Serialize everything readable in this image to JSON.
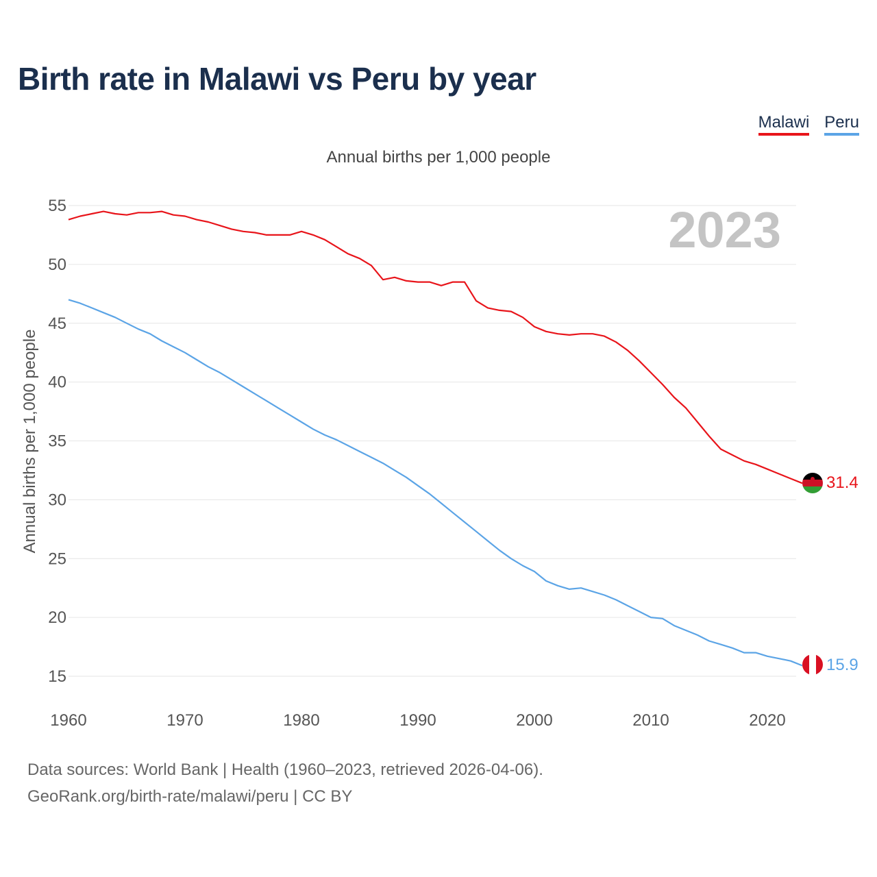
{
  "title": "Birth rate in Malawi vs Peru by year",
  "subtitle": "Annual births per 1,000 people",
  "legend": [
    {
      "label": "Malawi",
      "color": "#e8141a"
    },
    {
      "label": "Peru",
      "color": "#5ba4e6"
    }
  ],
  "year_overlay": "2023",
  "end_labels": {
    "malawi": "31.4",
    "peru": "15.9"
  },
  "footer": {
    "line1": "Data sources: World Bank | Health (1960–2023, retrieved 2026-04-06).",
    "line2": "GeoRank.org/birth-rate/malawi/peru | CC BY"
  },
  "colors": {
    "title": "#1b2f4d",
    "grid": "#e6e6e6",
    "axis_text": "#555555",
    "year_overlay": "#c4c4c4"
  },
  "chart_data": {
    "type": "line",
    "title": "Birth rate in Malawi vs Peru by year",
    "xlabel": "",
    "ylabel": "Annual births per 1,000 people",
    "xlim": [
      1960,
      2023
    ],
    "ylim": [
      15,
      55
    ],
    "x_ticks": [
      1960,
      1970,
      1980,
      1990,
      2000,
      2010,
      2020
    ],
    "y_ticks": [
      15,
      20,
      25,
      30,
      35,
      40,
      45,
      50,
      55
    ],
    "x": [
      1960,
      1961,
      1962,
      1963,
      1964,
      1965,
      1966,
      1967,
      1968,
      1969,
      1970,
      1971,
      1972,
      1973,
      1974,
      1975,
      1976,
      1977,
      1978,
      1979,
      1980,
      1981,
      1982,
      1983,
      1984,
      1985,
      1986,
      1987,
      1988,
      1989,
      1990,
      1991,
      1992,
      1993,
      1994,
      1995,
      1996,
      1997,
      1998,
      1999,
      2000,
      2001,
      2002,
      2003,
      2004,
      2005,
      2006,
      2007,
      2008,
      2009,
      2010,
      2011,
      2012,
      2013,
      2014,
      2015,
      2016,
      2017,
      2018,
      2019,
      2020,
      2021,
      2022,
      2023
    ],
    "series": [
      {
        "name": "Malawi",
        "color": "#e8141a",
        "values": [
          53.8,
          54.1,
          54.3,
          54.5,
          54.3,
          54.2,
          54.4,
          54.4,
          54.5,
          54.2,
          54.1,
          53.8,
          53.6,
          53.3,
          53.0,
          52.8,
          52.7,
          52.5,
          52.5,
          52.5,
          52.8,
          52.5,
          52.1,
          51.5,
          50.9,
          50.5,
          49.9,
          48.7,
          48.9,
          48.6,
          48.5,
          48.5,
          48.2,
          48.5,
          48.5,
          46.9,
          46.3,
          46.1,
          46.0,
          45.5,
          44.7,
          44.3,
          44.1,
          44.0,
          44.1,
          44.1,
          43.9,
          43.4,
          42.7,
          41.8,
          40.8,
          39.8,
          38.7,
          37.8,
          36.6,
          35.4,
          34.3,
          33.8,
          33.3,
          33.0,
          32.6,
          32.2,
          31.8,
          31.4
        ]
      },
      {
        "name": "Peru",
        "color": "#5ba4e6",
        "values": [
          47.0,
          46.7,
          46.3,
          45.9,
          45.5,
          45.0,
          44.5,
          44.1,
          43.5,
          43.0,
          42.5,
          41.9,
          41.3,
          40.8,
          40.2,
          39.6,
          39.0,
          38.4,
          37.8,
          37.2,
          36.6,
          36.0,
          35.5,
          35.1,
          34.6,
          34.1,
          33.6,
          33.1,
          32.5,
          31.9,
          31.2,
          30.5,
          29.7,
          28.9,
          28.1,
          27.3,
          26.5,
          25.7,
          25.0,
          24.4,
          23.9,
          23.1,
          22.7,
          22.4,
          22.5,
          22.2,
          21.9,
          21.5,
          21.0,
          20.5,
          20.0,
          19.9,
          19.3,
          18.9,
          18.5,
          18.0,
          17.7,
          17.4,
          17.0,
          17.0,
          16.7,
          16.5,
          16.3,
          15.9
        ]
      }
    ]
  }
}
